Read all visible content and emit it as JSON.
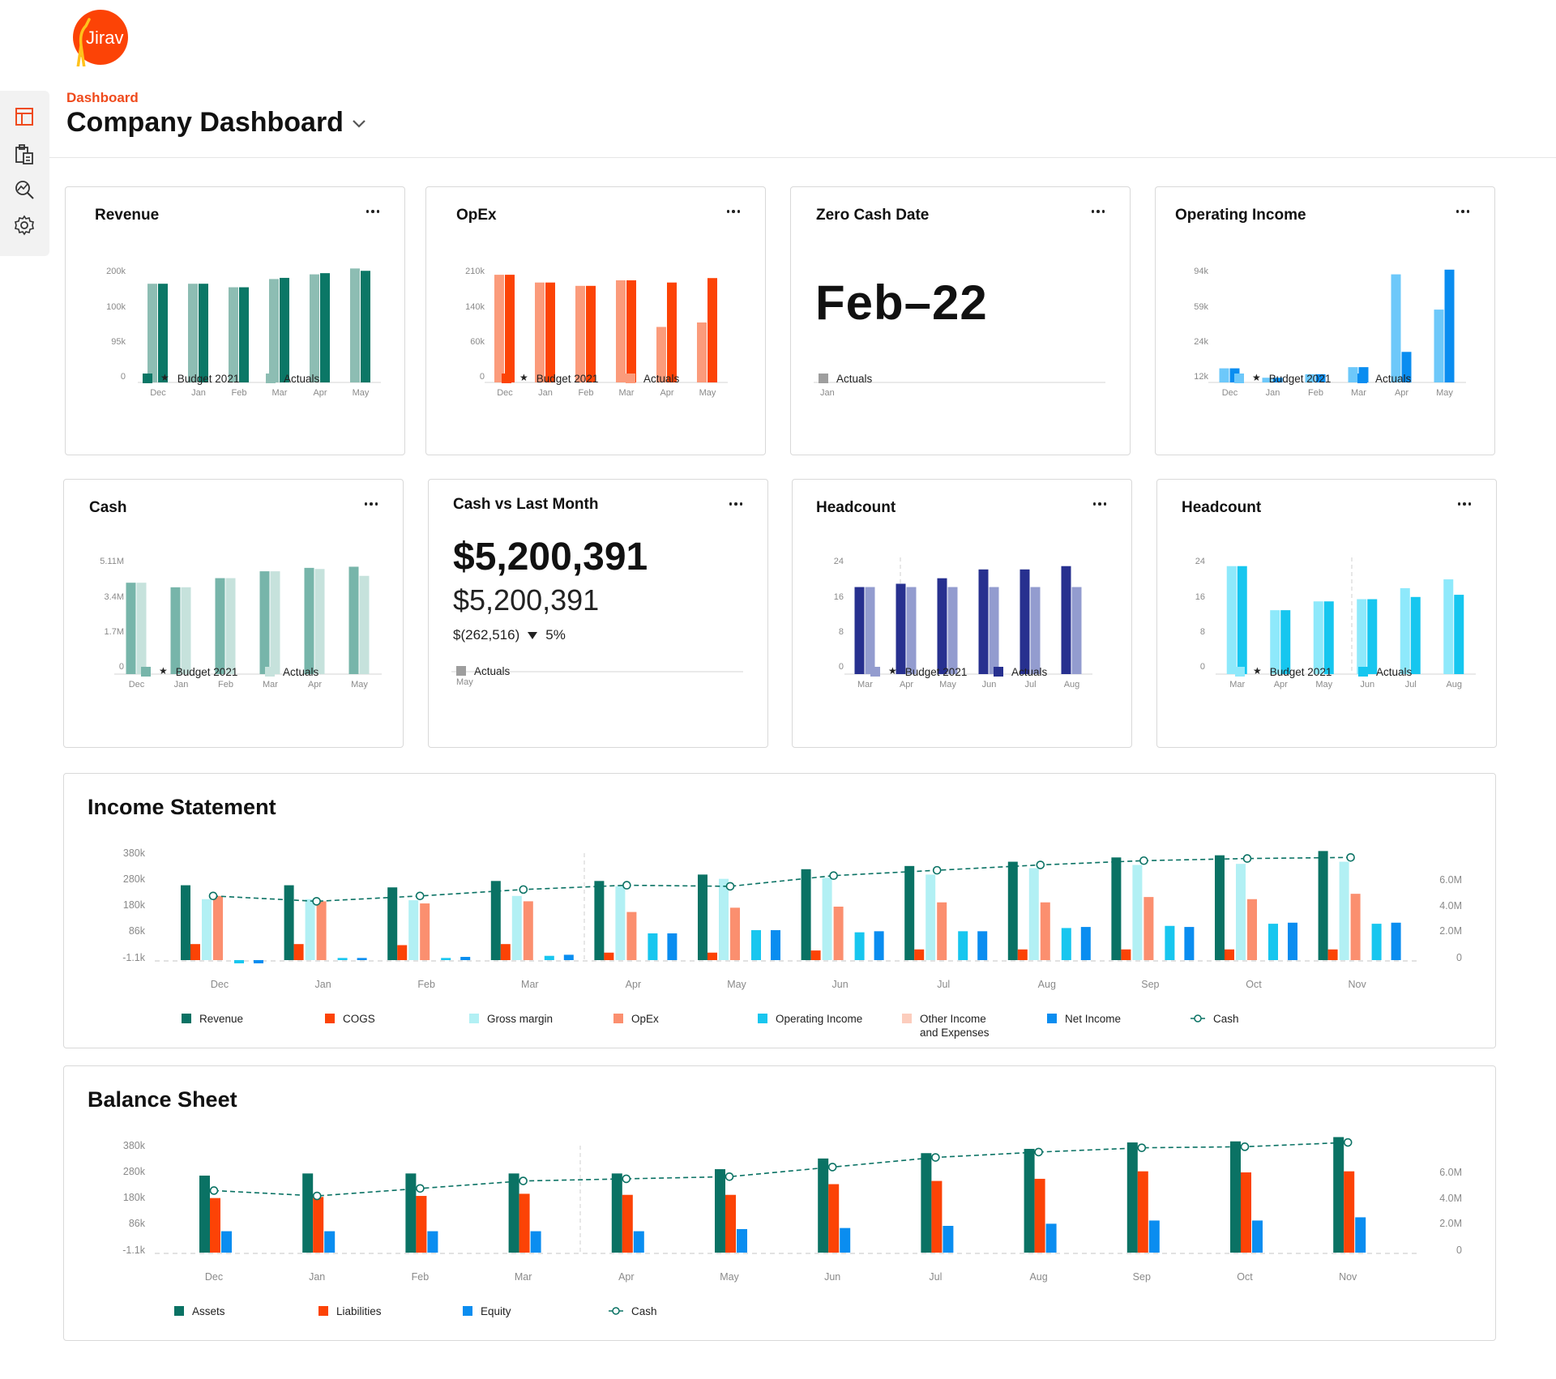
{
  "brand": {
    "logo_text": "Jirav",
    "accent": "#ef4a1c"
  },
  "rail": {
    "icons": [
      "dashboard-icon",
      "report-clipboard-icon",
      "analysis-search-icon",
      "settings-gear-icon"
    ]
  },
  "header": {
    "breadcrumb": "Dashboard",
    "title": "Company Dashboard"
  },
  "cards": {
    "revenue": {
      "title": "Revenue",
      "colors": {
        "budget": "#0b7766",
        "actuals": "#8dbdb3"
      },
      "legend": {
        "budget": "Budget 2021",
        "actuals": "Actuals"
      },
      "chart_data": {
        "type": "bar",
        "categories": [
          "Dec",
          "Jan",
          "Feb",
          "Mar",
          "Apr",
          "May"
        ],
        "yticks": [
          "200k",
          "100k",
          "95k",
          "0"
        ],
        "series": [
          {
            "name": "Actuals",
            "values": [
              0.84,
              0.84,
              0.81,
              0.88,
              0.92,
              0.97
            ]
          },
          {
            "name": "Budget 2021",
            "values": [
              0.84,
              0.84,
              0.81,
              0.89,
              0.93,
              0.95
            ]
          }
        ]
      }
    },
    "opex": {
      "title": "OpEx",
      "colors": {
        "budget": "#fc4306",
        "actuals": "#fb9b7b"
      },
      "legend": {
        "budget": "Budget 2021",
        "actuals": "Actuals"
      },
      "chart_data": {
        "type": "bar",
        "categories": [
          "Dec",
          "Jan",
          "Feb",
          "Mar",
          "Apr",
          "May"
        ],
        "yticks": [
          "210k",
          "140k",
          "60k",
          "0"
        ],
        "series": [
          {
            "name": "Actuals",
            "values": [
              0.97,
              0.9,
              0.87,
              0.92,
              0.5,
              0.54
            ]
          },
          {
            "name": "Budget 2021",
            "values": [
              0.97,
              0.9,
              0.87,
              0.92,
              0.9,
              0.94
            ]
          }
        ]
      }
    },
    "zero_cash": {
      "title": "Zero Cash Date",
      "value": "Feb–22",
      "axis_label": "Jan",
      "legend": {
        "actuals": "Actuals"
      },
      "colors": {
        "actuals": "#9e9e9e"
      }
    },
    "operating_income": {
      "title": "Operating Income",
      "colors": {
        "budget": "#6dc8fa",
        "actuals": "#0a8df0"
      },
      "legend": {
        "budget": "Budget 2021",
        "actuals": "Actuals"
      },
      "chart_data": {
        "type": "bar",
        "categories": [
          "Dec",
          "Jan",
          "Feb",
          "Mar",
          "Apr",
          "May"
        ],
        "yticks": [
          "94k",
          "59k",
          "24k",
          "12k"
        ],
        "series": [
          {
            "name": "Budget 2021",
            "values": [
              0.12,
              0.04,
              0.07,
              0.13,
              0.92,
              0.62
            ]
          },
          {
            "name": "Actuals",
            "values": [
              0.12,
              0.04,
              0.07,
              0.13,
              0.26,
              0.96
            ]
          }
        ]
      }
    },
    "cash": {
      "title": "Cash",
      "colors": {
        "budget": "#77b5aa",
        "actuals": "#c6e2dc"
      },
      "legend": {
        "budget": "Budget 2021",
        "actuals": "Actuals"
      },
      "chart_data": {
        "type": "bar",
        "categories": [
          "Dec",
          "Jan",
          "Feb",
          "Mar",
          "Apr",
          "May"
        ],
        "yticks": [
          "5.11M",
          "3.4M",
          "1.7M",
          "0"
        ],
        "series": [
          {
            "name": "Budget 2021",
            "values": [
              0.8,
              0.76,
              0.84,
              0.9,
              0.93,
              0.94
            ]
          },
          {
            "name": "Actuals",
            "values": [
              0.8,
              0.76,
              0.84,
              0.9,
              0.92,
              0.86
            ]
          }
        ]
      }
    },
    "cash_vs_last": {
      "title": "Cash vs Last Month",
      "main": "$5,200,391",
      "sub": "$5,200,391",
      "delta_amount": "$(262,516)",
      "delta_pct": "5%",
      "axis_label": "May",
      "legend": {
        "actuals": "Actuals"
      },
      "colors": {
        "actuals": "#9e9e9e"
      }
    },
    "headcount_a": {
      "title": "Headcount",
      "colors": {
        "budget": "#939ccf",
        "actuals": "#27308f"
      },
      "legend": {
        "budget": "Budget 2021",
        "actuals": "Actuals"
      },
      "chart_data": {
        "type": "bar",
        "categories": [
          "Mar",
          "Apr",
          "May",
          "Jun",
          "Jul",
          "Aug"
        ],
        "yticks": [
          "24",
          "16",
          "8",
          "0"
        ],
        "series": [
          {
            "name": "Actuals",
            "values": [
              0.79,
              0.82,
              0.87,
              0.95,
              0.95,
              0.98
            ]
          },
          {
            "name": "Budget 2021",
            "values": [
              0.79,
              0.79,
              0.79,
              0.79,
              0.79,
              0.79
            ]
          }
        ]
      }
    },
    "headcount_b": {
      "title": "Headcount",
      "colors": {
        "budget": "#8ee9fb",
        "actuals": "#16c6ef"
      },
      "legend": {
        "budget": "Budget 2021",
        "actuals": "Actuals"
      },
      "chart_data": {
        "type": "bar",
        "categories": [
          "Mar",
          "Apr",
          "May",
          "Jun",
          "Jul",
          "Aug"
        ],
        "yticks": [
          "24",
          "16",
          "8",
          "0"
        ],
        "series": [
          {
            "name": "Budget 2021",
            "values": [
              0.98,
              0.58,
              0.66,
              0.68,
              0.78,
              0.86
            ]
          },
          {
            "name": "Actuals",
            "values": [
              0.98,
              0.58,
              0.66,
              0.68,
              0.7,
              0.72
            ]
          }
        ]
      }
    }
  },
  "income_statement": {
    "title": "Income Statement",
    "colors": {
      "revenue": "#0a7264",
      "cogs": "#fc4306",
      "gross_margin": "#b2f0f4",
      "opex": "#fb8f6f",
      "operating_income": "#18c6ef",
      "other": "#fccdbd",
      "net_income": "#0a8df0",
      "cash": "#0a7264"
    },
    "legend": [
      {
        "key": "revenue",
        "label": "Revenue"
      },
      {
        "key": "cogs",
        "label": "COGS"
      },
      {
        "key": "gross_margin",
        "label": "Gross margin"
      },
      {
        "key": "opex",
        "label": "OpEx"
      },
      {
        "key": "operating_income",
        "label": "Operating Income"
      },
      {
        "key": "other",
        "label": "Other Income",
        "label2": "and Expenses"
      },
      {
        "key": "net_income",
        "label": "Net Income"
      },
      {
        "key": "cash",
        "label": "Cash",
        "line": true
      }
    ],
    "chart_data": {
      "type": "bar",
      "categories": [
        "Dec",
        "Jan",
        "Feb",
        "Mar",
        "Apr",
        "May",
        "Jun",
        "Jul",
        "Aug",
        "Sep",
        "Oct",
        "Nov"
      ],
      "yticks_left": [
        "380k",
        "280k",
        "180k",
        "86k",
        "-1.1k"
      ],
      "yticks_right": [
        "6.0M",
        "4.0M",
        "2.0M",
        "0"
      ],
      "series": [
        {
          "name": "Revenue",
          "values": [
            0.7,
            0.7,
            0.68,
            0.74,
            0.74,
            0.8,
            0.85,
            0.88,
            0.92,
            0.96,
            0.98,
            1.02
          ]
        },
        {
          "name": "COGS",
          "values": [
            0.15,
            0.15,
            0.14,
            0.15,
            0.07,
            0.07,
            0.09,
            0.1,
            0.1,
            0.1,
            0.1,
            0.1
          ]
        },
        {
          "name": "Gross margin",
          "values": [
            0.57,
            0.57,
            0.56,
            0.6,
            0.69,
            0.76,
            0.77,
            0.8,
            0.86,
            0.89,
            0.9,
            0.92
          ]
        },
        {
          "name": "OpEx",
          "values": [
            0.6,
            0.55,
            0.53,
            0.55,
            0.45,
            0.49,
            0.5,
            0.54,
            0.54,
            0.59,
            0.57,
            0.62
          ]
        },
        {
          "name": "Other Income and Expenses",
          "values": [
            0,
            0,
            0,
            0,
            0,
            0,
            0,
            0,
            0,
            0,
            0,
            0
          ]
        },
        {
          "name": "Operating Income",
          "values": [
            -0.03,
            0.02,
            0.02,
            0.04,
            0.25,
            0.28,
            0.26,
            0.27,
            0.3,
            0.32,
            0.34,
            0.34
          ]
        },
        {
          "name": "Net Income",
          "values": [
            -0.03,
            0.02,
            0.03,
            0.05,
            0.25,
            0.28,
            0.27,
            0.27,
            0.31,
            0.31,
            0.35,
            0.35
          ]
        }
      ],
      "cash_line": [
        0.6,
        0.55,
        0.6,
        0.66,
        0.7,
        0.69,
        0.79,
        0.84,
        0.89,
        0.93,
        0.95,
        0.96
      ]
    }
  },
  "balance_sheet": {
    "title": "Balance Sheet",
    "colors": {
      "assets": "#0a7264",
      "liabilities": "#fc4306",
      "equity": "#0a8df0",
      "cash": "#0a7264"
    },
    "legend": [
      {
        "key": "assets",
        "label": "Assets"
      },
      {
        "key": "liabilities",
        "label": "Liabilities"
      },
      {
        "key": "equity",
        "label": "Equity"
      },
      {
        "key": "cash",
        "label": "Cash",
        "line": true
      }
    ],
    "chart_data": {
      "type": "bar",
      "categories": [
        "Dec",
        "Jan",
        "Feb",
        "Mar",
        "Apr",
        "May",
        "Jun",
        "Jul",
        "Aug",
        "Sep",
        "Oct",
        "Nov"
      ],
      "yticks_left": [
        "380k",
        "280k",
        "180k",
        "86k",
        "-1.1k"
      ],
      "yticks_right": [
        "6.0M",
        "4.0M",
        "2.0M",
        "0"
      ],
      "series": [
        {
          "name": "Assets",
          "values": [
            0.72,
            0.74,
            0.74,
            0.74,
            0.74,
            0.78,
            0.88,
            0.93,
            0.97,
            1.03,
            1.04,
            1.08
          ]
        },
        {
          "name": "Liabilities",
          "values": [
            0.51,
            0.52,
            0.53,
            0.55,
            0.54,
            0.54,
            0.64,
            0.67,
            0.69,
            0.76,
            0.75,
            0.76
          ]
        },
        {
          "name": "Equity",
          "values": [
            0.2,
            0.2,
            0.2,
            0.2,
            0.2,
            0.22,
            0.23,
            0.25,
            0.27,
            0.3,
            0.3,
            0.33
          ]
        }
      ],
      "cash_line": [
        0.58,
        0.53,
        0.6,
        0.67,
        0.69,
        0.71,
        0.8,
        0.89,
        0.94,
        0.98,
        0.99,
        1.03
      ]
    }
  }
}
